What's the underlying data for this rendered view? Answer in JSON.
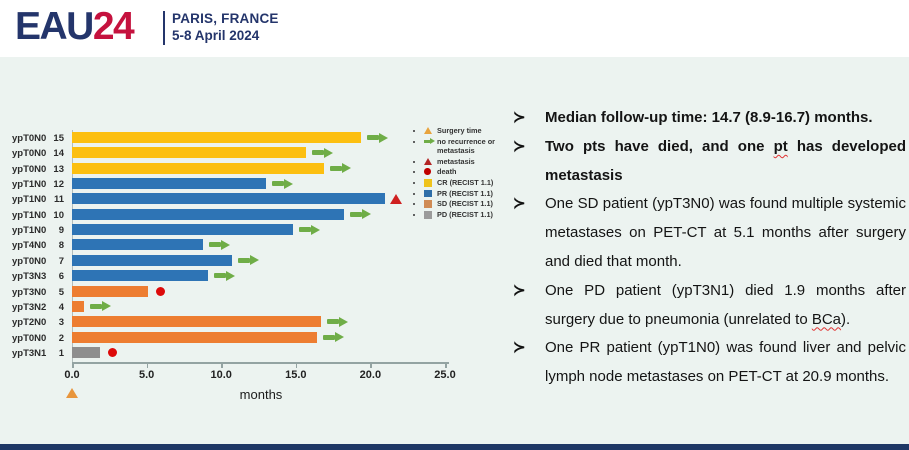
{
  "header": {
    "logo_main": "EAU",
    "logo_year": "24",
    "location": "PARIS, FRANCE",
    "dates": "5-8 April 2024"
  },
  "chart_data": {
    "type": "bar",
    "orientation": "horizontal",
    "xlabel": "months",
    "xlim": [
      0,
      25
    ],
    "x_tick_labels": [
      "0.0",
      "5.0",
      "10.0",
      "15.0",
      "20.0",
      "25.0"
    ],
    "surgery_time_x": 0,
    "rows": [
      {
        "label": "ypT0N0",
        "num": "15",
        "months": 19.4,
        "response": "CR",
        "marker": "arrow"
      },
      {
        "label": "ypT0N0",
        "num": "14",
        "months": 15.7,
        "response": "CR",
        "marker": "arrow"
      },
      {
        "label": "ypT0N0",
        "num": "13",
        "months": 16.9,
        "response": "CR",
        "marker": "arrow"
      },
      {
        "label": "ypT1N0",
        "num": "12",
        "months": 13.0,
        "response": "PR",
        "marker": "arrow"
      },
      {
        "label": "ypT1N0",
        "num": "11",
        "months": 21.0,
        "response": "PR",
        "marker": "metastasis"
      },
      {
        "label": "ypT1N0",
        "num": "10",
        "months": 18.2,
        "response": "PR",
        "marker": "arrow"
      },
      {
        "label": "ypT1N0",
        "num": "9",
        "months": 14.8,
        "response": "PR",
        "marker": "arrow"
      },
      {
        "label": "ypT4N0",
        "num": "8",
        "months": 8.8,
        "response": "PR",
        "marker": "arrow"
      },
      {
        "label": "ypT0N0",
        "num": "7",
        "months": 10.7,
        "response": "PR",
        "marker": "arrow"
      },
      {
        "label": "ypT3N3",
        "num": "6",
        "months": 9.1,
        "response": "PR",
        "marker": "arrow"
      },
      {
        "label": "ypT3N0",
        "num": "5",
        "months": 5.1,
        "response": "SD",
        "marker": "death"
      },
      {
        "label": "ypT3N2",
        "num": "4",
        "months": 0.8,
        "response": "SD",
        "marker": "arrow"
      },
      {
        "label": "ypT2N0",
        "num": "3",
        "months": 16.7,
        "response": "SD",
        "marker": "arrow"
      },
      {
        "label": "ypT0N0",
        "num": "2",
        "months": 16.4,
        "response": "SD",
        "marker": "arrow"
      },
      {
        "label": "ypT3N1",
        "num": "1",
        "months": 1.9,
        "response": "PD",
        "marker": "death"
      }
    ],
    "bar_colors": {
      "CR": "#FCBF10",
      "PR": "#2E74B5",
      "SD": "#ED7D31",
      "PD": "#8E8E8E"
    },
    "legend_square_colors": {
      "CR": "#EFC31C",
      "PR": "#2F6EA8",
      "SD": "#D08B55",
      "PD": "#9B9B9B"
    },
    "legend": [
      {
        "marker": "triangle-orange",
        "label": "Surgery time"
      },
      {
        "marker": "arrow-green",
        "label": "no recurrence or metastasis"
      },
      {
        "marker": "triangle-red",
        "label": "metastasis"
      },
      {
        "marker": "dot-red",
        "label": "death"
      },
      {
        "marker": "square-CR",
        "label": "CR (RECIST 1.1)"
      },
      {
        "marker": "square-PR",
        "label": "PR (RECIST 1.1)"
      },
      {
        "marker": "square-SD",
        "label": "SD (RECIST 1.1)"
      },
      {
        "marker": "square-PD",
        "label": "PD (RECIST 1.1)"
      }
    ]
  },
  "bullet_glyph": "≻",
  "bullets": [
    {
      "bold": true,
      "segments": [
        {
          "t": "Median follow-up time:  14.7 (8.9-16.7) months."
        }
      ]
    },
    {
      "bold": true,
      "segments": [
        {
          "t": "Two pts have died, and one "
        },
        {
          "t": "pt",
          "wavy": true
        },
        {
          "t": " has developed metastasis"
        }
      ]
    },
    {
      "bold": false,
      "segments": [
        {
          "t": "One SD patient (ypT3N0) was found multiple systemic metastases on PET-CT at 5.1 months after surgery and died that month."
        }
      ]
    },
    {
      "bold": false,
      "segments": [
        {
          "t": "One PD patient (ypT3N1) died 1.9 months after surgery due to pneumonia (unrelated to "
        },
        {
          "t": "BCa",
          "wavy": true
        },
        {
          "t": ")."
        }
      ]
    },
    {
      "bold": false,
      "segments": [
        {
          "t": "One PR patient (ypT1N0) was found liver and pelvic lymph node metastases on PET-CT at 20.9 months."
        }
      ]
    }
  ]
}
